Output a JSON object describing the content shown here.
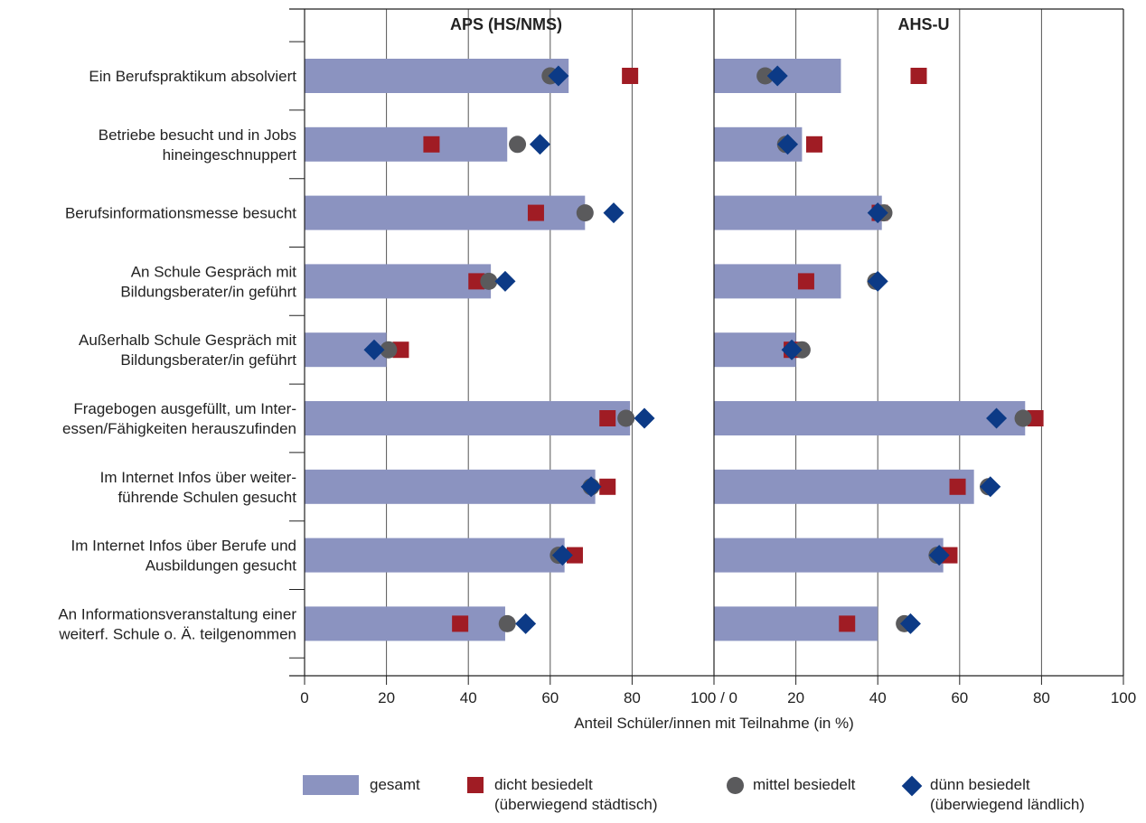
{
  "chart_data": {
    "type": "bar",
    "orientation": "horizontal",
    "panels": [
      {
        "title": "APS (HS/NMS)",
        "xlim": [
          0,
          100
        ],
        "ticks": [
          "0",
          "20",
          "40",
          "60",
          "80"
        ],
        "end_tick_label": "100 / 0",
        "series": [
          {
            "name": "gesamt",
            "values": [
              64.5,
              49.5,
              68.5,
              45.5,
              20,
              79.5,
              71,
              63.5,
              49
            ]
          },
          {
            "name": "dicht besiedelt (überwiegend städtisch)",
            "values": [
              79.5,
              31,
              56.5,
              42,
              23.5,
              74,
              74,
              66,
              38
            ]
          },
          {
            "name": "mittel besiedelt",
            "values": [
              60,
              52,
              68.5,
              45,
              20.5,
              78.5,
              70,
              62,
              49.5
            ]
          },
          {
            "name": "dünn besiedelt (überwiegend ländlich)",
            "values": [
              62,
              57.5,
              75.5,
              49,
              17,
              83,
              70,
              63,
              54
            ]
          }
        ]
      },
      {
        "title": "AHS-U",
        "xlim": [
          0,
          100
        ],
        "ticks": [
          "20",
          "40",
          "60",
          "80",
          "100"
        ],
        "series": [
          {
            "name": "gesamt",
            "values": [
              31,
              21.5,
              41,
              31,
              20,
              76,
              63.5,
              56,
              40
            ]
          },
          {
            "name": "dicht besiedelt (überwiegend städtisch)",
            "values": [
              50,
              24.5,
              40.5,
              22.5,
              19,
              78.5,
              59.5,
              57.5,
              32.5
            ]
          },
          {
            "name": "mittel besiedelt",
            "values": [
              12.5,
              17.5,
              41.5,
              39.5,
              21.5,
              75.5,
              67,
              54.5,
              46.5
            ]
          },
          {
            "name": "dünn besiedelt (überwiegend ländlich)",
            "values": [
              15.5,
              18,
              40,
              40,
              19,
              69,
              67.5,
              55,
              48
            ]
          }
        ]
      }
    ],
    "categories": [
      [
        "Ein Berufspraktikum absolviert"
      ],
      [
        "Betriebe besucht und in Jobs",
        "hineingeschnuppert"
      ],
      [
        "Berufsinformationsmesse besucht"
      ],
      [
        "An Schule Gespräch mit",
        "Bildungsberater/in geführt"
      ],
      [
        "Außerhalb Schule Gespräch mit",
        "Bildungsberater/in geführt"
      ],
      [
        "Fragebogen ausgefüllt, um Inter-",
        "essen/Fähigkeiten herauszufinden"
      ],
      [
        "Im Internet Infos über weiter-",
        "führende Schulen gesucht"
      ],
      [
        "Im Internet Infos über Berufe und",
        "Ausbildungen gesucht"
      ],
      [
        "An Informationsveranstaltung einer",
        "weiterf. Schule o. Ä. teilgenommen"
      ]
    ],
    "xlabel": "Anteil Schüler/innen mit Teilnahme (in %)",
    "grid": true,
    "legend_position": "bottom"
  },
  "colors": {
    "gesamt": "#8b93c0",
    "dicht": "#a01c24",
    "mittel": "#5a5a5c",
    "duenn": "#0c3a86",
    "axis": "#222222"
  },
  "legend": {
    "gesamt": "gesamt",
    "dicht": "dicht besiedelt",
    "dicht_sub": "(überwiegend städtisch)",
    "mittel": "mittel besiedelt",
    "duenn": "dünn besiedelt",
    "duenn_sub": "(überwiegend ländlich)"
  }
}
